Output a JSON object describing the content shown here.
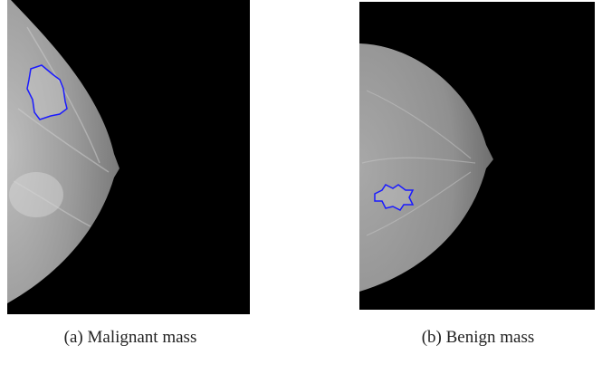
{
  "figures": [
    {
      "caption": "(a) Malignant mass"
    },
    {
      "caption": "(b) Benign mass"
    }
  ]
}
